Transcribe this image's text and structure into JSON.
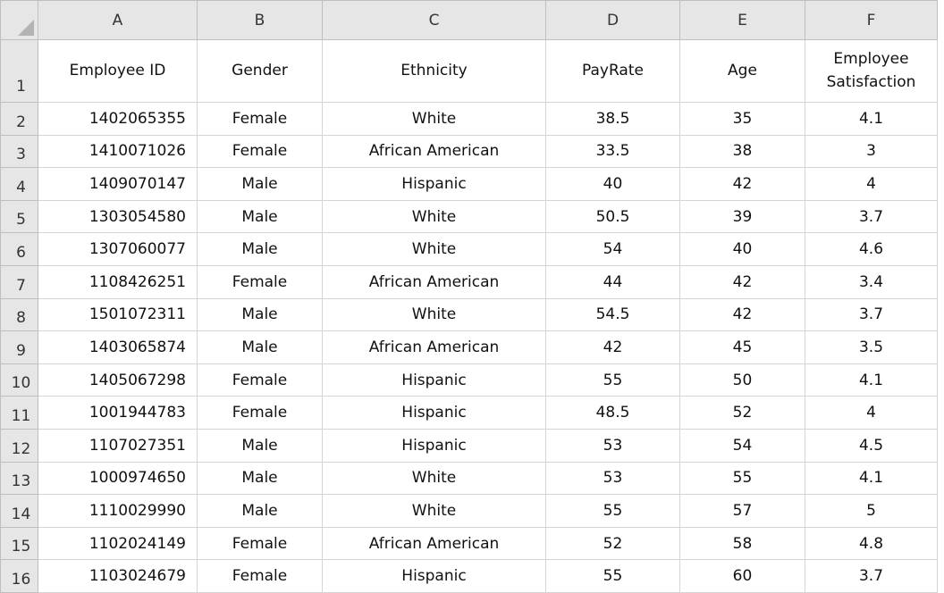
{
  "columns": [
    "A",
    "B",
    "C",
    "D",
    "E",
    "F"
  ],
  "rows": [
    {
      "number": 1,
      "cells": [
        "Employee ID",
        "Gender",
        "Ethnicity",
        "PayRate",
        "Age",
        "Employee Satisfaction"
      ]
    },
    {
      "number": 2,
      "cells": [
        1402065355,
        "Female",
        "White",
        38.5,
        35,
        4.1
      ]
    },
    {
      "number": 3,
      "cells": [
        1410071026,
        "Female",
        "African American",
        33.5,
        38,
        3
      ]
    },
    {
      "number": 4,
      "cells": [
        1409070147,
        "Male",
        "Hispanic",
        40,
        42,
        4
      ]
    },
    {
      "number": 5,
      "cells": [
        1303054580,
        "Male",
        "White",
        50.5,
        39,
        3.7
      ]
    },
    {
      "number": 6,
      "cells": [
        1307060077,
        "Male",
        "White",
        54,
        40,
        4.6
      ]
    },
    {
      "number": 7,
      "cells": [
        1108426251,
        "Female",
        "African American",
        44,
        42,
        3.4
      ]
    },
    {
      "number": 8,
      "cells": [
        1501072311,
        "Male",
        "White",
        54.5,
        42,
        3.7
      ]
    },
    {
      "number": 9,
      "cells": [
        1403065874,
        "Male",
        "African American",
        42,
        45,
        3.5
      ]
    },
    {
      "number": 10,
      "cells": [
        1405067298,
        "Female",
        "Hispanic",
        55,
        50,
        4.1
      ]
    },
    {
      "number": 11,
      "cells": [
        1001944783,
        "Female",
        "Hispanic",
        48.5,
        52,
        4
      ]
    },
    {
      "number": 12,
      "cells": [
        1107027351,
        "Male",
        "Hispanic",
        53,
        54,
        4.5
      ]
    },
    {
      "number": 13,
      "cells": [
        1000974650,
        "Male",
        "White",
        53,
        55,
        4.1
      ]
    },
    {
      "number": 14,
      "cells": [
        1110029990,
        "Male",
        "White",
        55,
        57,
        5
      ]
    },
    {
      "number": 15,
      "cells": [
        1102024149,
        "Female",
        "African American",
        52,
        58,
        4.8
      ]
    },
    {
      "number": 16,
      "cells": [
        1103024679,
        "Female",
        "Hispanic",
        55,
        60,
        3.7
      ]
    }
  ]
}
